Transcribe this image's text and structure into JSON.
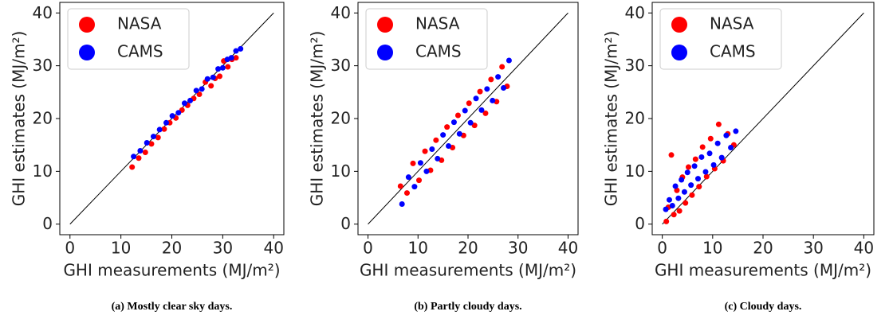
{
  "chart_data": [
    {
      "type": "scatter",
      "caption": "(a) Mostly clear sky days.",
      "xlabel": "GHI measurements (MJ/m²)",
      "ylabel": "GHI estimates (MJ/m²)",
      "xlim": [
        -2,
        42
      ],
      "ylim": [
        -2,
        42
      ],
      "xticks": [
        0,
        10,
        20,
        30,
        40
      ],
      "yticks": [
        0,
        10,
        20,
        30,
        40
      ],
      "grid": false,
      "legend": "upper left",
      "reference_line": {
        "x": [
          0,
          40
        ],
        "y": [
          0,
          40
        ],
        "color": "#000000"
      },
      "series": [
        {
          "name": "NASA",
          "color": "#ff0000",
          "x": [
            12.2,
            13.5,
            14.8,
            16.0,
            17.3,
            18.5,
            19.6,
            20.8,
            22.0,
            23.1,
            24.3,
            25.4,
            26.6,
            27.7,
            28.5,
            29.4,
            30.2,
            31.0,
            31.8,
            32.6
          ],
          "values": [
            10.8,
            12.5,
            13.6,
            15.2,
            16.4,
            18.0,
            19.2,
            20.1,
            21.6,
            22.5,
            23.8,
            24.6,
            26.9,
            26.2,
            27.6,
            28.0,
            30.9,
            29.8,
            31.2,
            31.5
          ]
        },
        {
          "name": "CAMS",
          "color": "#0000ff",
          "x": [
            12.5,
            13.8,
            15.1,
            16.4,
            17.6,
            18.9,
            20.1,
            21.3,
            22.5,
            23.6,
            24.8,
            25.9,
            27.0,
            28.1,
            29.1,
            30.0,
            30.9,
            31.7,
            32.6,
            33.5
          ],
          "values": [
            12.8,
            13.9,
            15.4,
            16.6,
            17.9,
            19.2,
            20.5,
            21.1,
            22.9,
            23.4,
            25.3,
            25.6,
            27.5,
            27.8,
            29.4,
            29.6,
            31.2,
            31.5,
            32.8,
            33.2
          ]
        }
      ]
    },
    {
      "type": "scatter",
      "caption": "(b) Partly cloudy days.",
      "xlabel": "GHI measurements (MJ/m²)",
      "ylabel": "GHI estimates (MJ/m²)",
      "xlim": [
        -2,
        42
      ],
      "ylim": [
        -2,
        42
      ],
      "xticks": [
        0,
        10,
        20,
        30,
        40
      ],
      "yticks": [
        0,
        10,
        20,
        30,
        40
      ],
      "grid": false,
      "legend": "upper left",
      "reference_line": {
        "x": [
          0,
          40
        ],
        "y": [
          0,
          40
        ],
        "color": "#000000"
      },
      "series": [
        {
          "name": "NASA",
          "color": "#ff0000",
          "x": [
            6.5,
            7.8,
            9.0,
            10.2,
            11.4,
            12.5,
            13.6,
            14.7,
            15.8,
            16.9,
            18.0,
            19.1,
            20.2,
            21.3,
            22.4,
            23.5,
            24.6,
            25.7,
            26.8,
            27.8
          ],
          "values": [
            7.2,
            5.9,
            11.5,
            8.3,
            13.8,
            10.2,
            15.9,
            12.1,
            18.4,
            14.5,
            20.6,
            16.8,
            22.9,
            18.7,
            25.1,
            21.0,
            27.4,
            23.2,
            29.8,
            26.1
          ]
        },
        {
          "name": "CAMS",
          "color": "#0000ff",
          "x": [
            6.8,
            8.1,
            9.3,
            10.5,
            11.7,
            12.8,
            13.9,
            15.0,
            16.1,
            17.2,
            18.3,
            19.4,
            20.5,
            21.6,
            22.7,
            23.8,
            24.9,
            26.0,
            27.1,
            28.2
          ],
          "values": [
            3.8,
            8.9,
            7.1,
            11.6,
            10.0,
            14.2,
            12.4,
            16.9,
            14.8,
            19.3,
            17.1,
            21.5,
            19.2,
            23.8,
            21.6,
            25.6,
            23.4,
            27.9,
            25.8,
            31.0
          ]
        }
      ]
    },
    {
      "type": "scatter",
      "caption": "(c) Cloudy days.",
      "xlabel": "GHI measurements (MJ/m²)",
      "ylabel": "GHI estimates (MJ/m²)",
      "xlim": [
        -2,
        42
      ],
      "ylim": [
        -2,
        42
      ],
      "xticks": [
        0,
        10,
        20,
        30,
        40
      ],
      "yticks": [
        0,
        10,
        20,
        30,
        40
      ],
      "grid": false,
      "legend": "upper left",
      "reference_line": {
        "x": [
          0,
          40
        ],
        "y": [
          0,
          40
        ],
        "color": "#000000"
      },
      "series": [
        {
          "name": "NASA",
          "color": "#ff0000",
          "x": [
            0.8,
            1.2,
            1.8,
            2.3,
            2.9,
            3.4,
            4.0,
            4.6,
            5.2,
            5.9,
            6.6,
            7.3,
            8.0,
            8.8,
            9.6,
            10.4,
            11.2,
            12.1,
            13.0,
            14.2
          ],
          "values": [
            0.5,
            3.2,
            13.1,
            1.8,
            6.4,
            2.5,
            8.9,
            4.0,
            10.8,
            5.5,
            12.3,
            7.1,
            14.6,
            9.0,
            16.2,
            10.5,
            18.9,
            12.0,
            17.1,
            15.0
          ]
        },
        {
          "name": "CAMS",
          "color": "#0000ff",
          "x": [
            0.7,
            1.4,
            2.0,
            2.6,
            3.2,
            3.8,
            4.4,
            5.0,
            5.7,
            6.4,
            7.1,
            7.8,
            8.6,
            9.4,
            10.2,
            11.0,
            11.8,
            12.7,
            13.6,
            14.6
          ],
          "values": [
            2.8,
            4.6,
            3.5,
            7.2,
            4.9,
            8.4,
            6.1,
            9.8,
            7.4,
            11.0,
            8.6,
            12.7,
            9.9,
            13.4,
            11.2,
            15.3,
            12.6,
            16.8,
            14.5,
            17.6
          ]
        }
      ]
    }
  ]
}
